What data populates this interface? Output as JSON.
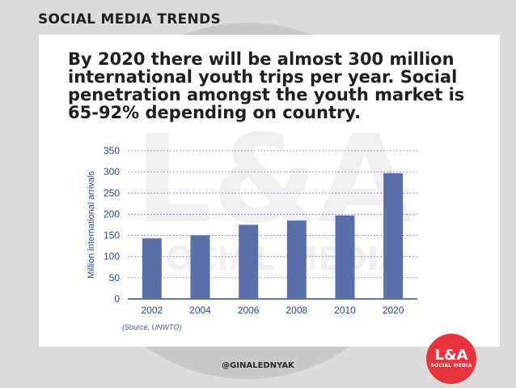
{
  "header": {
    "title": "SOCIAL MEDIA TRENDS"
  },
  "headline": "By 2020 there will be almost 300 million international youth trips per year. Social penetration amongst the youth market is 65-92% depending on country.",
  "watermark": {
    "logo_text": "L&A",
    "sub_text": "SOCIAL MEDIA"
  },
  "chart_data": {
    "type": "bar",
    "categories": [
      "2002",
      "2004",
      "2006",
      "2008",
      "2010",
      "2020"
    ],
    "values": [
      143,
      150,
      175,
      185,
      197,
      297
    ],
    "ylabel": "Million international arrivals",
    "ylim": [
      0,
      350
    ],
    "yticks": [
      0,
      50,
      100,
      150,
      200,
      250,
      300,
      350
    ],
    "grid": true,
    "bar_color": "#5a6ea8",
    "source": "(Source, UNWTO)"
  },
  "footer": {
    "handle": "@GINALEDNYAK"
  },
  "logo": {
    "main": "L&A",
    "sub": "SOCIAL MEDIA"
  },
  "colors": {
    "accent": "#e8323c",
    "bar": "#5a6ea8"
  }
}
